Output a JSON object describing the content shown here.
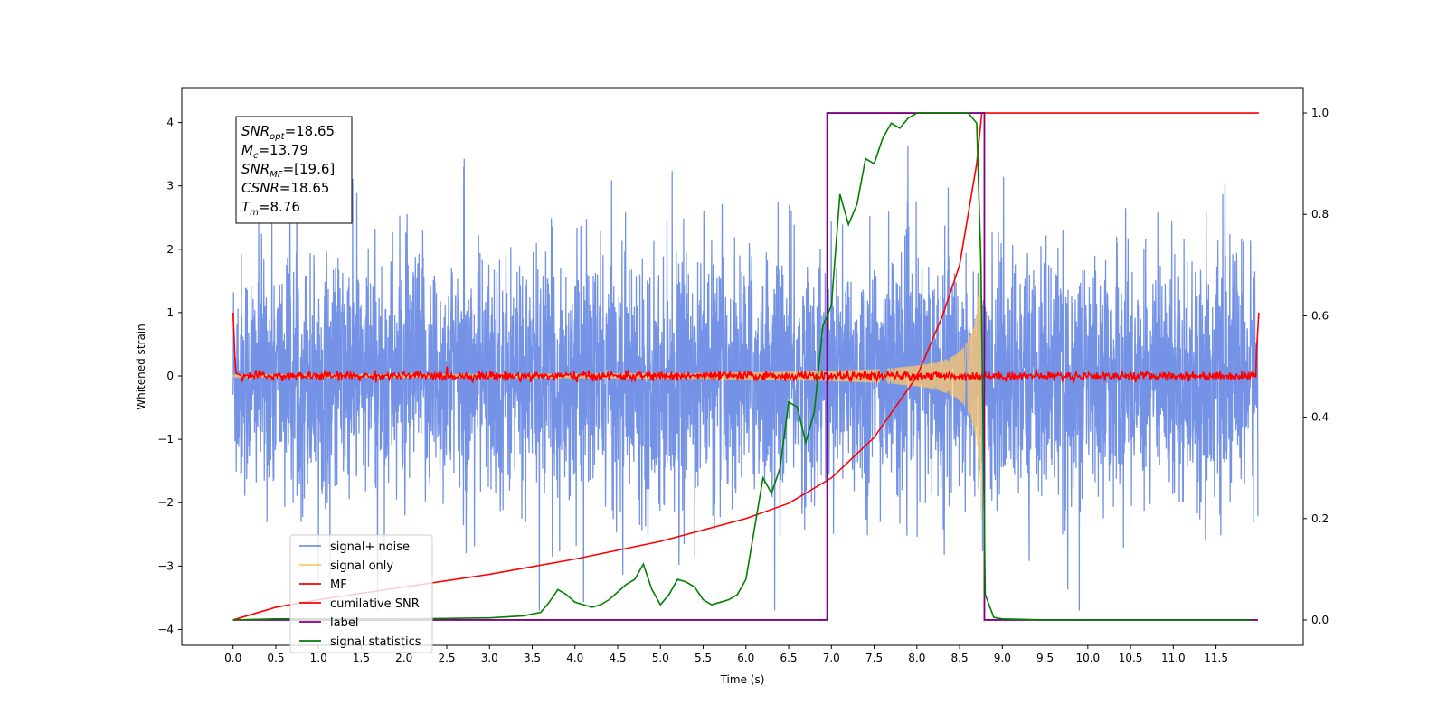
{
  "chart_data": {
    "type": "line",
    "xlabel": "Time (s)",
    "ylabel_left": "Whitened strain",
    "xlim": [
      -0.6,
      12.52
    ],
    "ylim_left": [
      -4.25,
      4.55
    ],
    "ylim_right": [
      -0.05,
      1.05
    ],
    "x_ticks": [
      "0.0",
      "0.5",
      "1.0",
      "1.5",
      "2.0",
      "2.5",
      "3.0",
      "3.5",
      "4.0",
      "4.5",
      "5.0",
      "5.5",
      "6.0",
      "6.5",
      "7.0",
      "7.5",
      "8.0",
      "8.5",
      "9.0",
      "9.5",
      "10.0",
      "10.5",
      "11.0",
      "11.5"
    ],
    "y_ticks_left": [
      "−4",
      "−3",
      "−2",
      "−1",
      "0",
      "1",
      "2",
      "3",
      "4"
    ],
    "y_ticks_right": [
      "0.0",
      "0.2",
      "0.4",
      "0.6",
      "0.8",
      "1.0"
    ],
    "grid": false,
    "annotation": {
      "lines": [
        {
          "main": "SNR",
          "sub": "opt",
          "rest": "=18.65"
        },
        {
          "main": "M",
          "sub": "c",
          "rest": "=13.79"
        },
        {
          "main": "SNR",
          "sub": "MF",
          "rest": "=[19.6]"
        },
        {
          "main": "CSNR",
          "sub": "",
          "rest": "=18.65"
        },
        {
          "main": "T",
          "sub": "m",
          "rest": "=8.76"
        }
      ]
    },
    "legend": {
      "position": "lower-left",
      "entries": [
        {
          "label": "signal+ noise",
          "color": "#7593e6"
        },
        {
          "label": "signal only",
          "color": "#ffc76b"
        },
        {
          "label": "MF",
          "color": "#ff0000"
        },
        {
          "label": "cumilative SNR",
          "color": "#ff0000"
        },
        {
          "label": "label",
          "color": "#800080"
        },
        {
          "label": "signal statistics",
          "color": "#008000"
        }
      ]
    },
    "series": [
      {
        "name": "signal+ noise",
        "axis": "left",
        "color": "#7593e6",
        "x_range": [
          0.0,
          11.99
        ],
        "envelope_approx": [
          -3.7,
          4.2
        ]
      },
      {
        "name": "signal only",
        "axis": "left",
        "color": "#ffc76b",
        "x_range": [
          0.0,
          8.76
        ],
        "peak_amplitude": 2.7,
        "merger_time": 8.76
      },
      {
        "name": "MF",
        "axis": "left",
        "color": "#ff0000",
        "x": [
          0.0,
          0.03,
          0.1,
          11.9,
          11.97,
          12.0
        ],
        "y": [
          1.0,
          0.1,
          0.0,
          0.0,
          0.3,
          1.0
        ]
      },
      {
        "name": "cumilative SNR",
        "axis": "right",
        "color": "#ff0000",
        "x": [
          0.0,
          0.5,
          1.0,
          2.0,
          3.0,
          4.0,
          5.0,
          6.0,
          6.5,
          7.0,
          7.5,
          8.0,
          8.3,
          8.5,
          8.6,
          8.7,
          8.76,
          12.0
        ],
        "y": [
          0.0,
          0.025,
          0.04,
          0.065,
          0.09,
          0.12,
          0.155,
          0.2,
          0.23,
          0.28,
          0.36,
          0.48,
          0.6,
          0.7,
          0.8,
          0.9,
          1.0,
          1.0
        ]
      },
      {
        "name": "label",
        "axis": "right",
        "color": "#800080",
        "x": [
          0.0,
          6.95,
          6.95,
          8.79,
          8.79,
          11.99
        ],
        "y": [
          0.0,
          0.0,
          1.0,
          1.0,
          0.0,
          0.0
        ]
      },
      {
        "name": "signal statistics",
        "axis": "right",
        "color": "#008000",
        "x": [
          0.0,
          0.5,
          1.0,
          2.0,
          2.5,
          3.0,
          3.4,
          3.6,
          3.7,
          3.8,
          3.9,
          4.0,
          4.1,
          4.2,
          4.3,
          4.4,
          4.5,
          4.6,
          4.7,
          4.8,
          4.9,
          5.0,
          5.1,
          5.2,
          5.3,
          5.4,
          5.5,
          5.6,
          5.7,
          5.8,
          5.9,
          6.0,
          6.1,
          6.2,
          6.3,
          6.4,
          6.5,
          6.6,
          6.7,
          6.8,
          6.9,
          7.0,
          7.1,
          7.2,
          7.3,
          7.4,
          7.5,
          7.6,
          7.7,
          7.8,
          7.9,
          8.0,
          8.2,
          8.5,
          8.6,
          8.65,
          8.7,
          8.75,
          8.8,
          8.9,
          9.0,
          9.5,
          10.0,
          11.0,
          11.9
        ],
        "y": [
          0.0,
          0.002,
          0.002,
          0.002,
          0.003,
          0.004,
          0.008,
          0.015,
          0.035,
          0.06,
          0.05,
          0.035,
          0.03,
          0.025,
          0.03,
          0.04,
          0.055,
          0.07,
          0.08,
          0.11,
          0.06,
          0.03,
          0.05,
          0.08,
          0.075,
          0.065,
          0.04,
          0.03,
          0.035,
          0.04,
          0.05,
          0.08,
          0.18,
          0.28,
          0.25,
          0.3,
          0.43,
          0.42,
          0.35,
          0.41,
          0.58,
          0.62,
          0.84,
          0.78,
          0.82,
          0.91,
          0.9,
          0.95,
          0.98,
          0.97,
          0.99,
          1.0,
          1.0,
          1.0,
          1.0,
          0.99,
          0.98,
          0.7,
          0.05,
          0.005,
          0.002,
          0.0,
          0.0,
          0.0,
          0.0
        ]
      }
    ]
  }
}
